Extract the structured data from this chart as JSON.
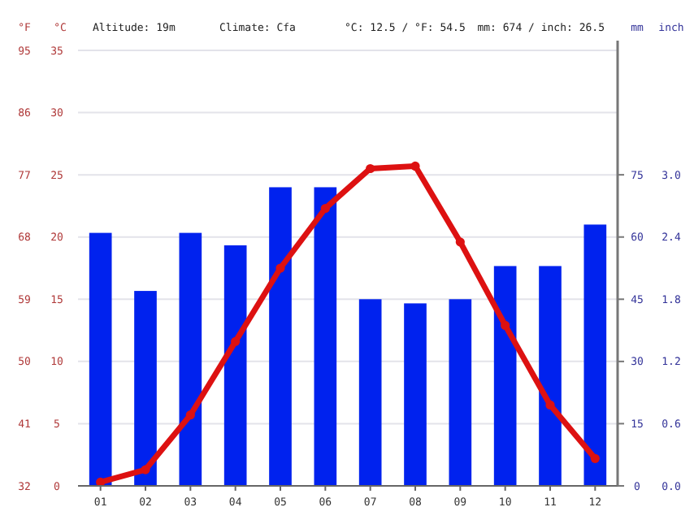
{
  "chart_data": {
    "type": "bar",
    "categories": [
      "01",
      "02",
      "03",
      "04",
      "05",
      "06",
      "07",
      "08",
      "09",
      "10",
      "11",
      "12"
    ],
    "series": [
      {
        "axis": "y2",
        "color": "#0022ee",
        "values": [
          61,
          47,
          61,
          58,
          72,
          72,
          45,
          44,
          45,
          53,
          53,
          63
        ]
      },
      {
        "type": "line",
        "axis": "y",
        "color": "#dd1111",
        "marker": "circle",
        "line_style": "solid",
        "values": [
          0.3,
          1.3,
          5.7,
          11.6,
          17.5,
          22.3,
          25.5,
          25.7,
          19.6,
          12.9,
          6.5,
          2.2
        ]
      }
    ],
    "ylabel": "°C",
    "ylim": [
      0,
      35
    ],
    "yticks": [
      0,
      5,
      10,
      15,
      20,
      25,
      30,
      35
    ],
    "y3label": "°F",
    "y3lim": [
      32,
      95
    ],
    "y3ticks": [
      32,
      41,
      50,
      59,
      68,
      77,
      86,
      95
    ],
    "y2label": "mm",
    "y2lim": [
      0,
      105
    ],
    "y2ticks": [
      0,
      15,
      30,
      45,
      60,
      75
    ],
    "annotations": [
      "Altitude: 19m",
      "Climate: Cfa",
      "°C: 12.5 / °F: 54.5",
      "mm: 674 / inch: 26.5",
      "inch",
      "0.0",
      "0.6",
      "1.2",
      "1.8",
      "2.4",
      "3.0"
    ],
    "grid": "y",
    "legend": false
  }
}
